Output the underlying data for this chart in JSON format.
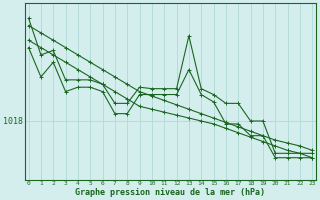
{
  "xlabel": "Graphe pression niveau de la mer (hPa)",
  "background_color": "#d4eeee",
  "grid_color": "#b0d8d8",
  "line_color": "#1a6620",
  "ytick_label": "1018",
  "ytick_value": 1018,
  "ylim": [
    1014.0,
    1026.0
  ],
  "xlim": [
    -0.3,
    23.3
  ],
  "series": {
    "line_wiggly1": [
      1025.0,
      1022.5,
      1022.8,
      1020.8,
      1020.8,
      1020.8,
      1020.5,
      1019.2,
      1019.2,
      1020.3,
      1020.2,
      1020.2,
      1020.2,
      1023.8,
      1020.2,
      1019.8,
      1019.2,
      1019.2,
      1018.0,
      1018.0,
      1015.8,
      1015.8,
      1015.8,
      1015.8
    ],
    "line_wiggly2": [
      1023.0,
      1021.0,
      1022.0,
      1020.0,
      1020.3,
      1020.3,
      1020.0,
      1018.5,
      1018.5,
      1019.8,
      1019.8,
      1019.8,
      1019.8,
      1021.5,
      1019.8,
      1019.3,
      1017.8,
      1017.8,
      1017.0,
      1017.0,
      1015.5,
      1015.5,
      1015.5,
      1015.5
    ],
    "line_straight1": [
      1024.5,
      1024.0,
      1023.5,
      1023.0,
      1022.5,
      1022.0,
      1021.5,
      1021.0,
      1020.5,
      1020.0,
      1019.7,
      1019.4,
      1019.1,
      1018.8,
      1018.5,
      1018.2,
      1017.9,
      1017.6,
      1017.3,
      1017.0,
      1016.7,
      1016.5,
      1016.3,
      1016.0
    ],
    "line_straight2": [
      1023.5,
      1023.0,
      1022.5,
      1022.0,
      1021.5,
      1021.0,
      1020.5,
      1020.0,
      1019.5,
      1019.0,
      1018.8,
      1018.6,
      1018.4,
      1018.2,
      1018.0,
      1017.8,
      1017.5,
      1017.2,
      1016.9,
      1016.6,
      1016.3,
      1016.0,
      1015.8,
      1015.5
    ]
  }
}
